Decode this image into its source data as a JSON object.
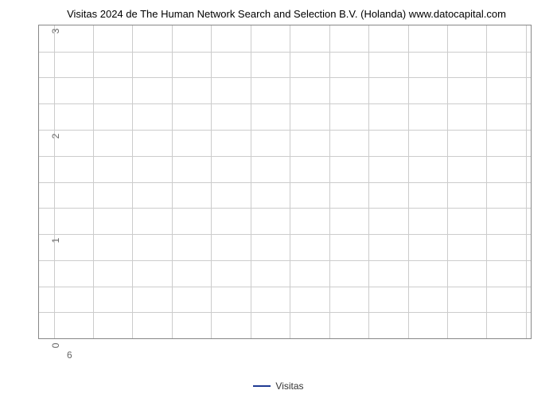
{
  "chart": {
    "type": "line",
    "title": "Visitas 2024 de The Human Network Search and Selection B.V. (Holanda) www.datocapital.com",
    "title_fontsize": 13,
    "title_color": "#000000",
    "background_color": "#ffffff",
    "plot_border_color": "#888888",
    "grid_color": "#cccccc",
    "tick_label_color": "#666666",
    "tick_fontsize": 12,
    "y_axis": {
      "min": 0,
      "max": 3,
      "major_ticks": [
        0,
        1,
        2,
        3
      ],
      "minor_divisions_per_major": 4
    },
    "x_axis": {
      "ticks": [
        6
      ],
      "grid_positions_pct": [
        3,
        11,
        19,
        27,
        35,
        43,
        51,
        59,
        67,
        75,
        83,
        91,
        99
      ]
    },
    "series": [
      {
        "name": "Visitas",
        "color": "#1f3a93",
        "line_width": 2,
        "data": []
      }
    ],
    "legend": {
      "label": "Visitas",
      "position": "bottom-center"
    }
  }
}
